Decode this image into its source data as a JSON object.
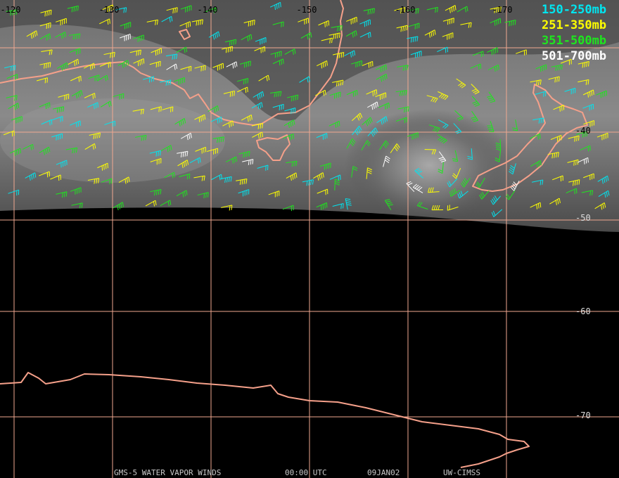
{
  "map": {
    "longitude_labels": [
      "-120",
      "-130",
      "-140",
      "-150",
      "-160",
      "-170"
    ],
    "latitude_labels": [
      "-40",
      "-50",
      "-60",
      "-70"
    ],
    "legend": [
      {
        "label": "150-250mb",
        "color": "#00e5f0"
      },
      {
        "label": "251-350mb",
        "color": "#ffff00"
      },
      {
        "label": "351-500mb",
        "color": "#1ee61e"
      },
      {
        "label": "501-700mb",
        "color": "#ffffff"
      }
    ],
    "footer": [
      "GMS-5 WATER VAPOR WINDS",
      "00:00 UTC",
      "09JAN02",
      "UW-CIMSS"
    ]
  }
}
